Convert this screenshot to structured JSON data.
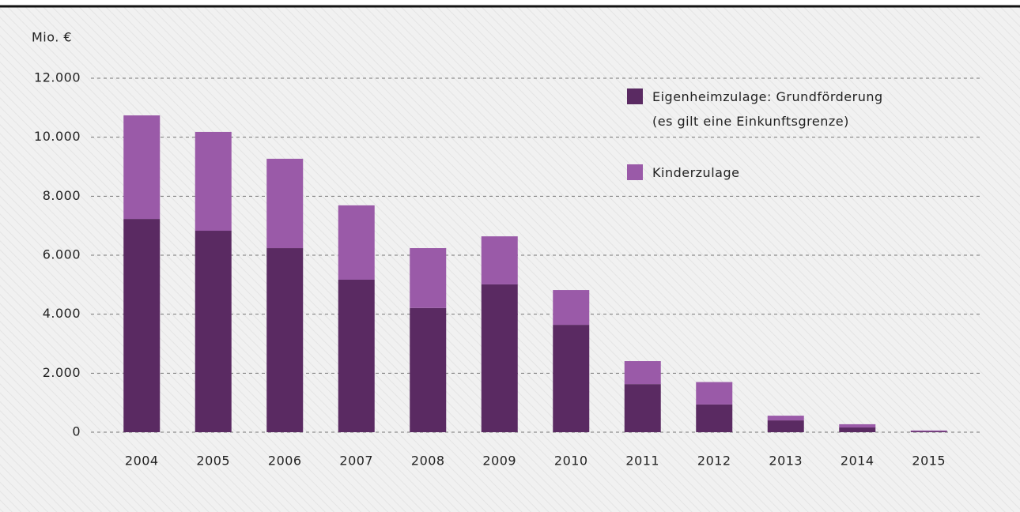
{
  "chart_data": {
    "type": "stacked_bar",
    "y_label": "Mio. €",
    "categories": [
      "2004",
      "2005",
      "2006",
      "2007",
      "2008",
      "2009",
      "2010",
      "2011",
      "2012",
      "2013",
      "2014",
      "2015"
    ],
    "series": [
      {
        "name": "Eigenheimzulage: Grundförderung\n(es gilt eine Einkunftsgrenze)",
        "color": "#5a2a62",
        "values": [
          7230,
          6830,
          6240,
          5170,
          4210,
          5010,
          3640,
          1630,
          940,
          400,
          160,
          30
        ]
      },
      {
        "name": "Kinderzulage",
        "color": "#9a5aa8",
        "values": [
          3510,
          3350,
          3030,
          2520,
          2030,
          1630,
          1180,
          780,
          760,
          160,
          110,
          30
        ]
      }
    ],
    "ylim": [
      0,
      12000
    ],
    "yticks": [
      0,
      {
        "value": 2000,
        "label": "2.000"
      },
      {
        "value": 4000,
        "label": "4.000"
      },
      {
        "value": 6000,
        "label": "6.000"
      },
      {
        "value": 8000,
        "label": "8.000"
      },
      {
        "value": 10000,
        "label": "10.000"
      },
      {
        "value": 12000,
        "label": "12.000"
      }
    ],
    "grid": true,
    "legend": "top-right"
  }
}
